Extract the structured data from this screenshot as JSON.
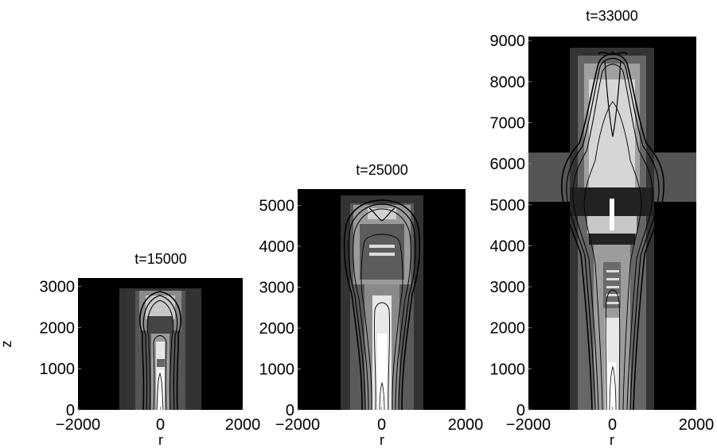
{
  "chart_data": [
    {
      "type": "heatmap",
      "title": "t=15000",
      "xlabel": "r",
      "ylabel": "z",
      "xlim": [
        -2000,
        2000
      ],
      "ylim": [
        0,
        3200
      ],
      "xticks": [
        "−2000",
        "0",
        "2000"
      ],
      "yticks": [
        "0",
        "1000",
        "2000",
        "3000"
      ],
      "x_tick_values": [
        -2000,
        0,
        2000
      ],
      "y_tick_values": [
        0,
        1000,
        2000,
        3000
      ],
      "tip_z": 3000,
      "half_width_r": 1050,
      "colormap": "gray"
    },
    {
      "type": "heatmap",
      "title": "t=25000",
      "xlabel": "r",
      "ylabel": "",
      "xlim": [
        -2000,
        2000
      ],
      "ylim": [
        0,
        5400
      ],
      "xticks": [
        "−2000",
        "0",
        "2000"
      ],
      "yticks": [
        "0",
        "1000",
        "2000",
        "3000",
        "4000",
        "5000"
      ],
      "x_tick_values": [
        -2000,
        0,
        2000
      ],
      "y_tick_values": [
        0,
        1000,
        2000,
        3000,
        4000,
        5000
      ],
      "tip_z": 5000,
      "half_width_r": 1200,
      "colormap": "gray"
    },
    {
      "type": "heatmap",
      "title": "t=33000",
      "xlabel": "r",
      "ylabel": "",
      "xlim": [
        -2000,
        2000
      ],
      "ylim": [
        0,
        9100
      ],
      "xticks": [
        "−2000",
        "0",
        "2000"
      ],
      "yticks": [
        "0",
        "1000",
        "2000",
        "3000",
        "4000",
        "5000",
        "6000",
        "7000",
        "8000",
        "9000"
      ],
      "x_tick_values": [
        -2000,
        0,
        2000
      ],
      "y_tick_values": [
        0,
        1000,
        2000,
        3000,
        4000,
        5000,
        6000,
        7000,
        8000,
        9000
      ],
      "tip_z": 8800,
      "half_width_r": 1300,
      "colormap": "gray"
    }
  ]
}
